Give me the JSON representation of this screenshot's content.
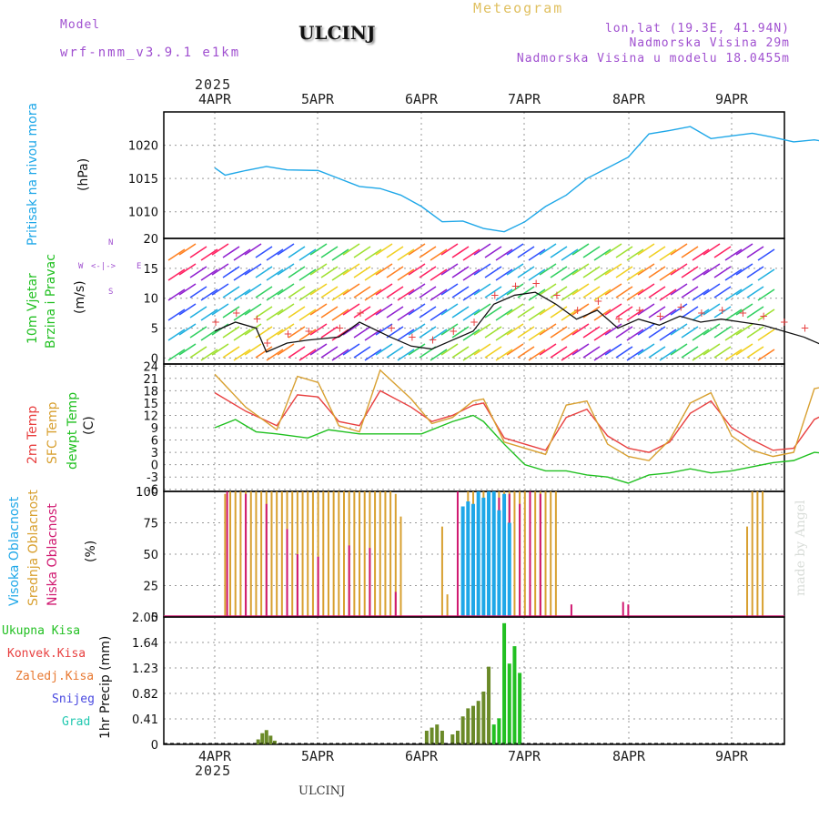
{
  "header": {
    "model_label": "Model",
    "model_name": "wrf-nmm_v3.9.1 e1km",
    "title": "ULCINJ",
    "subtitle": "Meteogram",
    "lonlat": "lon,lat (19.3E, 41.94N)",
    "elev": "Nadmorska Visina 29m",
    "elev_model": "Nadmorska Visina u modelu 18.0455m",
    "footer": "ULCINJ",
    "watermark": "made by Angel",
    "year": "2025"
  },
  "colors": {
    "pressure": "#1ea7e8",
    "wind_label": "#22c022",
    "temp2m": "#e84040",
    "sfc": "#d8a030",
    "dew": "#20c020",
    "cloud_high": "#1ea7e8",
    "cloud_mid": "#d8a030",
    "cloud_low": "#d01870",
    "rain_total": "#22c022",
    "rain_conv": "#e84040",
    "rain_strat": "#e87830",
    "snow": "#4848e0",
    "hail": "#20c8b0",
    "purple": "#a050d0"
  },
  "chart_data": {
    "type": "line",
    "x_ticks": [
      "4APR",
      "5APR",
      "6APR",
      "7APR",
      "8APR",
      "9APR"
    ],
    "panels": [
      {
        "id": "pressure",
        "labels": [
          "Pritisak na nivou mora",
          "(hPa)"
        ],
        "yticks": [
          1010,
          1015,
          1020
        ],
        "ylim": [
          1006,
          1025
        ],
        "series": [
          {
            "name": "Pritisak na nivou mora",
            "x": [
              0,
              0.1,
              0.3,
              0.5,
              0.7,
              1.0,
              1.2,
              1.4,
              1.6,
              1.8,
              2.0,
              2.2,
              2.4,
              2.6,
              2.8,
              3.0,
              3.2,
              3.4,
              3.6,
              3.8,
              4.0,
              4.2,
              4.4,
              4.6,
              4.8,
              5.0,
              5.2,
              5.4,
              5.6,
              5.8,
              6.0
            ],
            "y": [
              1016.6,
              1015.5,
              1016.2,
              1016.8,
              1016.3,
              1016.2,
              1015.0,
              1013.8,
              1013.5,
              1012.5,
              1010.8,
              1008.5,
              1008.6,
              1007.5,
              1007.0,
              1008.5,
              1010.8,
              1012.5,
              1015.0,
              1016.6,
              1018.2,
              1021.7,
              1022.2,
              1022.8,
              1021.0,
              1021.4,
              1021.8,
              1021.2,
              1020.5,
              1020.8,
              1020.3
            ]
          }
        ]
      },
      {
        "id": "wind",
        "labels": [
          "10m Vjetar",
          "Brzina i Pravac",
          "(m/s)"
        ],
        "yticks": [
          0,
          5,
          10,
          15,
          20
        ],
        "ylim": [
          -1,
          20
        ],
        "series": [
          {
            "name": "Brzina",
            "x": [
              0.0,
              0.2,
              0.4,
              0.5,
              0.7,
              0.9,
              1.2,
              1.4,
              1.7,
              1.9,
              2.1,
              2.3,
              2.5,
              2.7,
              2.9,
              3.1,
              3.3,
              3.5,
              3.7,
              3.9,
              4.1,
              4.3,
              4.5,
              4.7,
              4.9,
              5.1,
              5.3,
              5.5,
              5.7,
              5.9,
              6.0
            ],
            "y": [
              4.5,
              6.0,
              5.0,
              1.0,
              2.5,
              3.0,
              3.5,
              6.0,
              3.5,
              2.0,
              1.5,
              3.0,
              4.5,
              9.0,
              10.5,
              11.0,
              9.0,
              6.5,
              8.0,
              5.0,
              6.5,
              5.5,
              7.0,
              6.0,
              6.5,
              6.0,
              5.5,
              4.5,
              3.5,
              2.0,
              4.0
            ]
          }
        ]
      },
      {
        "id": "temp",
        "labels": [
          "2m Temp",
          "SFC Temp",
          "dewpt Temp",
          "(C)"
        ],
        "yticks": [
          -6,
          -3,
          0,
          3,
          6,
          9,
          12,
          15,
          18,
          21,
          24
        ],
        "ylim": [
          -6.5,
          24.5
        ],
        "series": [
          {
            "name": "2m Temp",
            "x": [
              0,
              0.3,
              0.6,
              0.8,
              1.0,
              1.2,
              1.4,
              1.6,
              1.9,
              2.1,
              2.3,
              2.5,
              2.6,
              2.8,
              3.0,
              3.2,
              3.4,
              3.6,
              3.8,
              4.0,
              4.2,
              4.4,
              4.6,
              4.8,
              5.0,
              5.2,
              5.4,
              5.6,
              5.8,
              6.0
            ],
            "y": [
              17.5,
              13.0,
              9.5,
              17.0,
              16.5,
              10.5,
              9.5,
              18.0,
              14.0,
              10.5,
              12.0,
              14.5,
              15.0,
              6.5,
              5.0,
              3.5,
              11.5,
              13.5,
              7.0,
              4.0,
              3.0,
              5.5,
              12.5,
              15.5,
              9.0,
              6.0,
              3.5,
              4.0,
              11.0,
              13.5
            ]
          },
          {
            "name": "SFC Temp",
            "x": [
              0,
              0.3,
              0.6,
              0.8,
              1.0,
              1.2,
              1.4,
              1.6,
              1.9,
              2.1,
              2.3,
              2.5,
              2.6,
              2.8,
              3.0,
              3.2,
              3.4,
              3.6,
              3.8,
              4.0,
              4.2,
              4.4,
              4.6,
              4.8,
              5.0,
              5.2,
              5.4,
              5.6,
              5.8,
              6.0
            ],
            "y": [
              22.0,
              14.0,
              8.5,
              21.5,
              20.0,
              9.5,
              8.0,
              23.0,
              16.0,
              10.0,
              11.5,
              15.5,
              16.0,
              5.5,
              4.0,
              2.5,
              14.5,
              15.5,
              5.0,
              2.0,
              1.0,
              6.0,
              15.0,
              17.5,
              7.0,
              3.5,
              2.0,
              3.0,
              18.5,
              19.5
            ]
          },
          {
            "name": "dewpt Temp",
            "x": [
              0,
              0.2,
              0.4,
              0.6,
              0.9,
              1.1,
              1.4,
              1.7,
              2.0,
              2.3,
              2.5,
              2.6,
              2.8,
              3.0,
              3.2,
              3.4,
              3.6,
              3.8,
              4.0,
              4.2,
              4.4,
              4.6,
              4.8,
              5.0,
              5.2,
              5.4,
              5.6,
              5.8,
              6.0
            ],
            "y": [
              9.0,
              11.0,
              8.0,
              7.5,
              6.5,
              8.5,
              7.5,
              7.5,
              7.5,
              10.5,
              12.0,
              10.5,
              5.0,
              0.0,
              -1.5,
              -1.5,
              -2.5,
              -3.0,
              -4.5,
              -2.5,
              -2.0,
              -1.0,
              -2.0,
              -1.5,
              -0.5,
              0.5,
              1.0,
              3.0,
              2.5
            ]
          }
        ]
      },
      {
        "id": "clouds",
        "labels": [
          "Visoka Oblacnost",
          "Srednja Oblacnost",
          "Niska Oblacnost",
          "(%)"
        ],
        "yticks": [
          0,
          25,
          50,
          75,
          100
        ],
        "ylim": [
          0,
          100
        ],
        "series": [
          {
            "name": "Srednja Oblacnost",
            "x": [
              0.1,
              0.15,
              0.2,
              0.25,
              0.3,
              0.35,
              0.4,
              0.45,
              0.5,
              0.55,
              0.6,
              0.65,
              0.7,
              0.75,
              0.8,
              0.85,
              0.9,
              0.95,
              1.0,
              1.05,
              1.1,
              1.15,
              1.2,
              1.25,
              1.3,
              1.35,
              1.4,
              1.45,
              1.5,
              1.55,
              1.6,
              1.65,
              1.7,
              1.75,
              1.8,
              2.2,
              2.25,
              2.45,
              2.5,
              2.55,
              2.6,
              2.65,
              2.7,
              2.75,
              2.8,
              2.85,
              2.9,
              2.95,
              3.0,
              3.05,
              3.1,
              3.15,
              3.2,
              3.25,
              3.3,
              5.15,
              5.2,
              5.25,
              5.3
            ],
            "y": [
              98,
              100,
              100,
              100,
              100,
              100,
              100,
              100,
              100,
              100,
              100,
              100,
              100,
              100,
              100,
              100,
              100,
              100,
              100,
              100,
              100,
              100,
              100,
              100,
              100,
              100,
              100,
              100,
              100,
              100,
              100,
              100,
              100,
              98,
              80,
              72,
              18,
              100,
              100,
              100,
              100,
              100,
              100,
              100,
              100,
              100,
              100,
              100,
              100,
              100,
              100,
              100,
              100,
              100,
              100,
              72,
              100,
              100,
              100
            ]
          },
          {
            "name": "Niska Oblacnost",
            "x": [
              0.12,
              0.3,
              0.5,
              0.7,
              0.8,
              1.0,
              1.3,
              1.5,
              1.75,
              2.35,
              2.65,
              2.75,
              2.85,
              2.95,
              3.05,
              3.15,
              3.45,
              3.95,
              4.0,
              5.95,
              6.0
            ],
            "y": [
              100,
              98,
              90,
              70,
              50,
              48,
              57,
              55,
              20,
              100,
              100,
              95,
              98,
              90,
              100,
              98,
              10,
              12,
              10,
              10,
              10
            ]
          },
          {
            "name": "Visoka Oblacnost",
            "x": [
              2.4,
              2.45,
              2.5,
              2.55,
              2.6,
              2.65,
              2.7,
              2.75,
              2.8,
              2.85
            ],
            "y": [
              88,
              92,
              90,
              100,
              95,
              100,
              100,
              85,
              98,
              75
            ]
          }
        ]
      },
      {
        "id": "precip",
        "labels": [
          "1hr Precip (mm)"
        ],
        "yticks": [
          0,
          0.41,
          0.82,
          1.23,
          1.64,
          2.05
        ],
        "ylim": [
          0,
          2.05
        ],
        "series": [
          {
            "name": "Zaledj.Kisa",
            "x": [
              0.42,
              0.46,
              0.5,
              0.54,
              0.58,
              2.05,
              2.1,
              2.15,
              2.2,
              2.3,
              2.35,
              2.4,
              2.45,
              2.5,
              2.55,
              2.6,
              2.65
            ],
            "y": [
              0.08,
              0.18,
              0.23,
              0.14,
              0.06,
              0.22,
              0.27,
              0.32,
              0.22,
              0.16,
              0.22,
              0.45,
              0.58,
              0.62,
              0.7,
              0.85,
              1.25
            ]
          },
          {
            "name": "Ukupna Kisa",
            "x": [
              2.7,
              2.75,
              2.8,
              2.85,
              2.9,
              2.95
            ],
            "y": [
              0.32,
              0.42,
              1.95,
              1.3,
              1.58,
              1.15
            ]
          }
        ]
      }
    ],
    "legend": {
      "rain_total": "Ukupna Kisa",
      "rain_conv": "Konvek.Kisa",
      "rain_strat": "Zaledj.Kisa",
      "snow": "Snijeg",
      "hail": "Grad"
    },
    "compass": {
      "n": "N",
      "s": "S",
      "e": "E",
      "w": "W"
    }
  }
}
